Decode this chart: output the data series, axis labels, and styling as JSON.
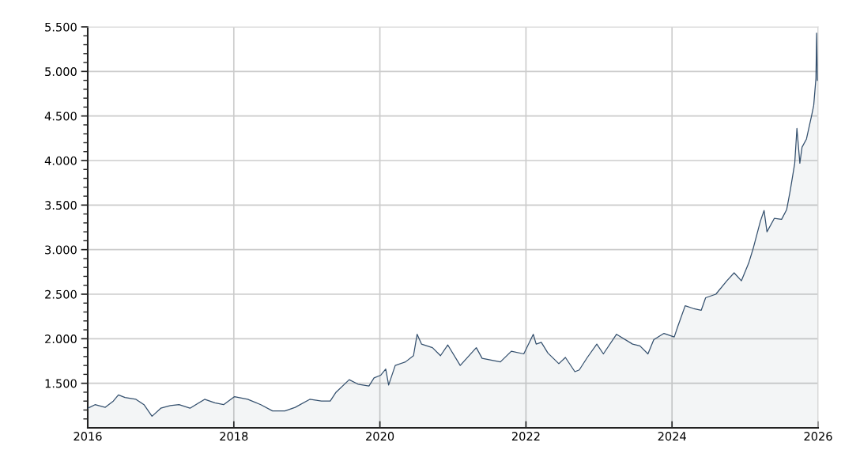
{
  "chart_data": {
    "type": "area",
    "x": [
      2016.0,
      2016.1,
      2016.24,
      2016.35,
      2016.42,
      2016.51,
      2016.66,
      2016.77,
      2016.88,
      2017.0,
      2017.13,
      2017.25,
      2017.4,
      2017.6,
      2017.74,
      2017.86,
      2018.01,
      2018.19,
      2018.37,
      2018.53,
      2018.7,
      2018.84,
      2019.04,
      2019.2,
      2019.32,
      2019.4,
      2019.58,
      2019.7,
      2019.85,
      2019.92,
      2020.01,
      2020.08,
      2020.12,
      2020.21,
      2020.35,
      2020.46,
      2020.51,
      2020.57,
      2020.72,
      2020.83,
      2020.93,
      2021.1,
      2021.32,
      2021.4,
      2021.65,
      2021.8,
      2021.97,
      2022.1,
      2022.14,
      2022.21,
      2022.3,
      2022.45,
      2022.54,
      2022.67,
      2022.73,
      2022.84,
      2022.97,
      2023.06,
      2023.24,
      2023.46,
      2023.56,
      2023.67,
      2023.75,
      2023.89,
      2024.03,
      2024.08,
      2024.18,
      2024.29,
      2024.4,
      2024.46,
      2024.6,
      2024.75,
      2024.85,
      2024.95,
      2025.05,
      2025.11,
      2025.21,
      2025.26,
      2025.3,
      2025.4,
      2025.5,
      2025.57,
      2025.62,
      2025.68,
      2025.71,
      2025.75,
      2025.78,
      2025.84,
      2025.91,
      2025.94,
      2025.97,
      2025.98,
      2025.99
    ],
    "series": [
      {
        "color": "#34506e",
        "values": [
          1220,
          1260,
          1230,
          1300,
          1370,
          1340,
          1320,
          1260,
          1130,
          1220,
          1250,
          1260,
          1220,
          1320,
          1280,
          1260,
          1350,
          1320,
          1260,
          1190,
          1190,
          1230,
          1320,
          1300,
          1300,
          1400,
          1540,
          1490,
          1470,
          1560,
          1590,
          1660,
          1480,
          1700,
          1740,
          1810,
          2050,
          1940,
          1900,
          1810,
          1930,
          1700,
          1900,
          1780,
          1740,
          1860,
          1830,
          2050,
          1940,
          1960,
          1840,
          1720,
          1790,
          1630,
          1650,
          1790,
          1940,
          1830,
          2050,
          1940,
          1920,
          1830,
          1990,
          2060,
          2020,
          2140,
          2370,
          2340,
          2320,
          2460,
          2500,
          2650,
          2740,
          2650,
          2850,
          3010,
          3320,
          3440,
          3200,
          3350,
          3340,
          3450,
          3670,
          3970,
          4360,
          3970,
          4150,
          4240,
          4500,
          4620,
          4920,
          5430,
          4900
        ]
      }
    ],
    "xlim": [
      2016,
      2026
    ],
    "xticks": [
      2016,
      2018,
      2020,
      2022,
      2024,
      2026
    ],
    "ylim": [
      1000,
      5500
    ],
    "yticks": [
      {
        "value": 1100,
        "label": null
      },
      {
        "value": 1200,
        "label": null
      },
      {
        "value": 1300,
        "label": null
      },
      {
        "value": 1400,
        "label": null
      },
      {
        "value": 1500,
        "label": "1.500"
      },
      {
        "value": 1600,
        "label": null
      },
      {
        "value": 1700,
        "label": null
      },
      {
        "value": 1800,
        "label": null
      },
      {
        "value": 1900,
        "label": null
      },
      {
        "value": 2000,
        "label": "2.000"
      },
      {
        "value": 2100,
        "label": null
      },
      {
        "value": 2200,
        "label": null
      },
      {
        "value": 2300,
        "label": null
      },
      {
        "value": 2400,
        "label": null
      },
      {
        "value": 2500,
        "label": "2.500"
      },
      {
        "value": 2600,
        "label": null
      },
      {
        "value": 2700,
        "label": null
      },
      {
        "value": 2800,
        "label": null
      },
      {
        "value": 2900,
        "label": null
      },
      {
        "value": 3000,
        "label": "3.000"
      },
      {
        "value": 3100,
        "label": null
      },
      {
        "value": 3200,
        "label": null
      },
      {
        "value": 3300,
        "label": null
      },
      {
        "value": 3400,
        "label": null
      },
      {
        "value": 3500,
        "label": "3.500"
      },
      {
        "value": 3600,
        "label": null
      },
      {
        "value": 3700,
        "label": null
      },
      {
        "value": 3800,
        "label": null
      },
      {
        "value": 3900,
        "label": null
      },
      {
        "value": 4000,
        "label": "4.000"
      },
      {
        "value": 4100,
        "label": null
      },
      {
        "value": 4200,
        "label": null
      },
      {
        "value": 4300,
        "label": null
      },
      {
        "value": 4400,
        "label": null
      },
      {
        "value": 4500,
        "label": "4.500"
      },
      {
        "value": 4600,
        "label": null
      },
      {
        "value": 4700,
        "label": null
      },
      {
        "value": 4800,
        "label": null
      },
      {
        "value": 4900,
        "label": null
      },
      {
        "value": 5000,
        "label": "5.000"
      },
      {
        "value": 5100,
        "label": null
      },
      {
        "value": 5200,
        "label": null
      },
      {
        "value": 5300,
        "label": null
      },
      {
        "value": 5400,
        "label": null
      },
      {
        "value": 5500,
        "label": "5.500"
      }
    ],
    "grid": true
  }
}
